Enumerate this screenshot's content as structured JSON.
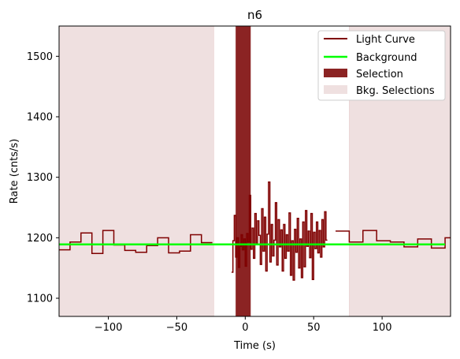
{
  "chart_data": {
    "type": "line",
    "title": "n6",
    "xlabel": "Time (s)",
    "ylabel": "Rate (cnts/s)",
    "xlim": [
      -136,
      150
    ],
    "ylim": [
      1070,
      1550
    ],
    "xticks": [
      -100,
      -50,
      0,
      50,
      100
    ],
    "yticks": [
      1100,
      1200,
      1300,
      1400,
      1500
    ],
    "legend_position": "top-right",
    "legend": [
      "Light Curve",
      "Background",
      "Selection",
      "Bkg. Selections"
    ],
    "colors": {
      "light_curve": "#7f0000",
      "background": "#00ff00",
      "selection": "#8b2323",
      "bkg_selection": "#efe0e0"
    },
    "background": {
      "x": [
        -136,
        146
      ],
      "y": [
        1189,
        1189
      ]
    },
    "bkg_selections": [
      [
        -136,
        -23
      ],
      [
        76,
        150
      ]
    ],
    "selection": [
      -7,
      4
    ],
    "light_curve_coarse_left": {
      "edges": [
        -136,
        -128,
        -120,
        -112,
        -104,
        -96,
        -88,
        -80,
        -72,
        -64,
        -56,
        -48,
        -40,
        -32,
        -24
      ],
      "values": [
        1180,
        1193,
        1208,
        1174,
        1212,
        1188,
        1179,
        1176,
        1187,
        1200,
        1175,
        1178,
        1205,
        1192
      ]
    },
    "light_curve_fine": {
      "edges": [
        -10,
        -9,
        -8,
        -7,
        -6,
        -5,
        -4,
        -3,
        -2,
        -1,
        0,
        1,
        2,
        3,
        4,
        5,
        6,
        7,
        8,
        9,
        10,
        11,
        12,
        13,
        14,
        15,
        16,
        17,
        18,
        19,
        20,
        21,
        22,
        23,
        24,
        25,
        26,
        27,
        28,
        29,
        30,
        31,
        32,
        33,
        34,
        35,
        36,
        37,
        38,
        39,
        40,
        41,
        42,
        43,
        44,
        45,
        46,
        47,
        48,
        49,
        50,
        51,
        52,
        53,
        54,
        55,
        56,
        57,
        58,
        59,
        60
      ],
      "values": [
        1143,
        1195,
        1237,
        1168,
        1200,
        1151,
        1186,
        1205,
        1180,
        1198,
        1153,
        1207,
        1193,
        1270,
        1181,
        1216,
        1166,
        1240,
        1190,
        1228,
        1204,
        1156,
        1248,
        1178,
        1234,
        1145,
        1206,
        1292,
        1160,
        1222,
        1170,
        1196,
        1258,
        1155,
        1230,
        1185,
        1213,
        1145,
        1222,
        1166,
        1205,
        1178,
        1241,
        1138,
        1195,
        1130,
        1214,
        1176,
        1232,
        1150,
        1198,
        1134,
        1226,
        1152,
        1245,
        1186,
        1211,
        1167,
        1240,
        1131,
        1209,
        1182,
        1226,
        1175,
        1212,
        1168,
        1230,
        1185,
        1243,
        1196
      ]
    },
    "light_curve_coarse_right": {
      "edges": [
        66,
        76,
        86,
        96,
        106,
        116,
        126,
        136,
        146,
        150
      ],
      "values": [
        1211,
        1193,
        1212,
        1195,
        1193,
        1185,
        1198,
        1183,
        1200
      ]
    }
  }
}
